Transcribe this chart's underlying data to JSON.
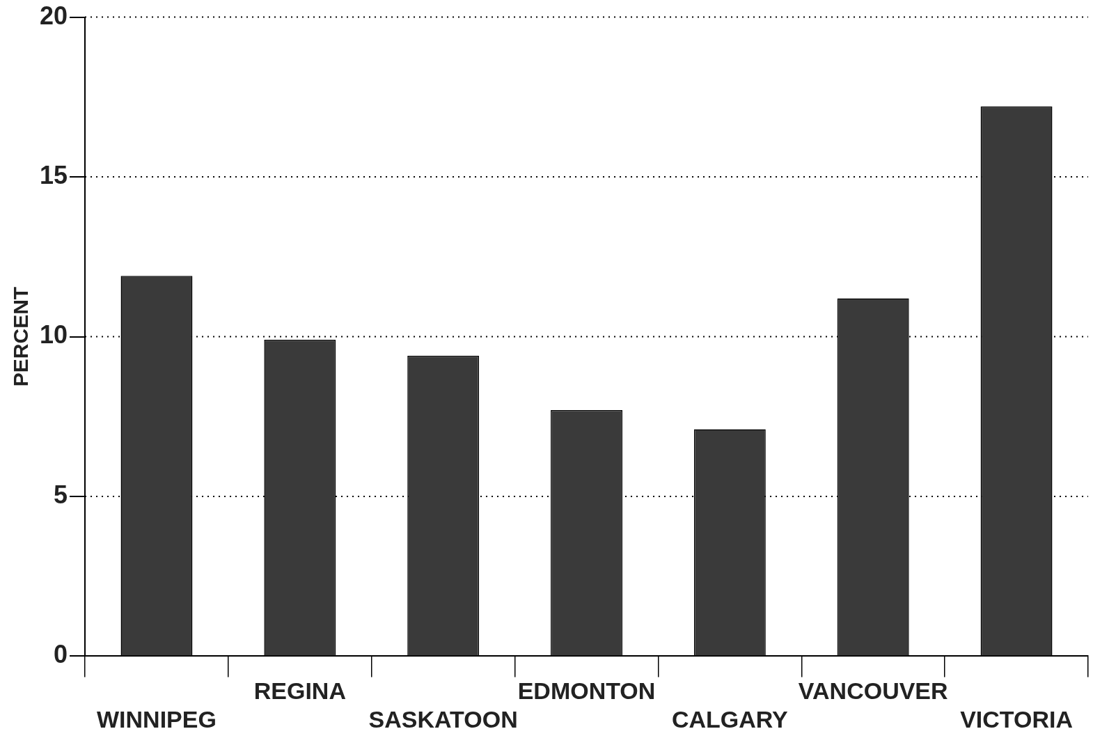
{
  "chart_data": {
    "type": "bar",
    "ylabel": "PERCENT",
    "categories": [
      "WINNIPEG",
      "REGINA",
      "SASKATOON",
      "EDMONTON",
      "CALGARY",
      "VANCOUVER",
      "VICTORIA"
    ],
    "values": [
      11.9,
      9.9,
      9.4,
      7.7,
      7.1,
      11.2,
      17.2
    ],
    "color": "#3a3a3a",
    "ylim": [
      0,
      20
    ],
    "yticks": [
      0,
      5,
      10,
      15,
      20
    ],
    "grid": "y"
  }
}
